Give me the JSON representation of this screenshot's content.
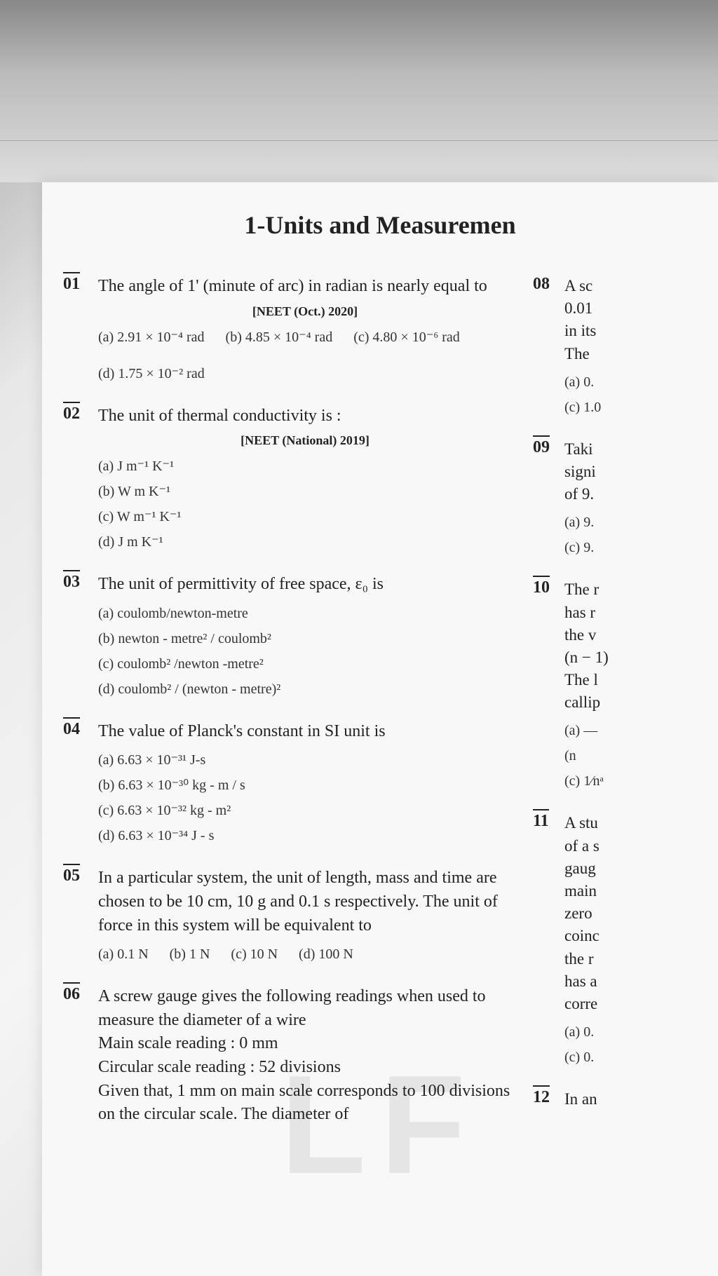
{
  "chapter_title": "1-Units and Measuremen",
  "questions": [
    {
      "num": "01",
      "text": "The angle of 1' (minute of arc) in radian is nearly equal to",
      "source": "[NEET (Oct.) 2020]",
      "opts": [
        "(a) 2.91 × 10⁻⁴ rad",
        "(b) 4.85 × 10⁻⁴ rad",
        "(c) 4.80 × 10⁻⁶ rad",
        "(d) 1.75 × 10⁻² rad"
      ],
      "layout": "grid2"
    },
    {
      "num": "02",
      "text": "The unit of thermal conductivity is :",
      "source": "[NEET (National) 2019]",
      "opts": [
        "(a) J m⁻¹ K⁻¹",
        "(b) W m K⁻¹",
        "(c) W m⁻¹ K⁻¹",
        "(d) J m K⁻¹"
      ],
      "layout": "block"
    },
    {
      "num": "03",
      "text": "The unit of permittivity of free space, ε₀ is",
      "source": "",
      "opts": [
        "(a) coulomb/newton-metre",
        "(b) newton - metre² / coulomb²",
        "(c) coulomb² /newton -metre²",
        "(d) coulomb² / (newton - metre)²"
      ],
      "layout": "block"
    },
    {
      "num": "04",
      "text": "The value of Planck's constant in SI unit is",
      "source": "",
      "opts": [
        "(a) 6.63 × 10⁻³¹ J-s",
        "(b) 6.63 × 10⁻³⁰ kg - m / s",
        "(c) 6.63 × 10⁻³² kg - m²",
        "(d) 6.63 × 10⁻³⁴ J - s"
      ],
      "layout": "block"
    },
    {
      "num": "05",
      "text": "In a particular system, the unit of length, mass and time are chosen to be 10 cm, 10 g and 0.1 s respectively. The unit of force in this system will be equivalent to",
      "source": "",
      "opts": [
        "(a) 0.1 N",
        "(b) 1 N",
        "(c) 10 N",
        "(d) 100 N"
      ],
      "layout": "row"
    },
    {
      "num": "06",
      "text": "A screw gauge gives the following readings when used to measure the diameter of a wire\nMain scale reading : 0 mm\nCircular scale reading : 52 divisions\nGiven that, 1 mm on main scale corresponds to 100 divisions on the circular scale. The diameter of",
      "source": "",
      "opts": [],
      "layout": "none"
    }
  ],
  "right_questions": [
    {
      "num": "08",
      "text": "A sc\n0.01\nin its\nThe",
      "opts": [
        "(a) 0.",
        "(c) 1.0"
      ]
    },
    {
      "num": "09",
      "text": "Taki\nsigni\nof 9.",
      "opts": [
        "(a) 9.",
        "(c) 9."
      ]
    },
    {
      "num": "10",
      "text": "The r\nhas r\nthe v\n(n − 1)\nThe l\ncallip",
      "opts": [
        "(a) —",
        "(n",
        "(c) 1⁄nᵃ"
      ]
    },
    {
      "num": "11",
      "text": "A stu\nof a s\ngaug\nmain\nzero\ncoinc\nthe r\nhas a\ncorre",
      "opts": [
        "(a) 0.",
        "(c) 0."
      ]
    },
    {
      "num": "12",
      "text": "In an",
      "opts": []
    }
  ]
}
